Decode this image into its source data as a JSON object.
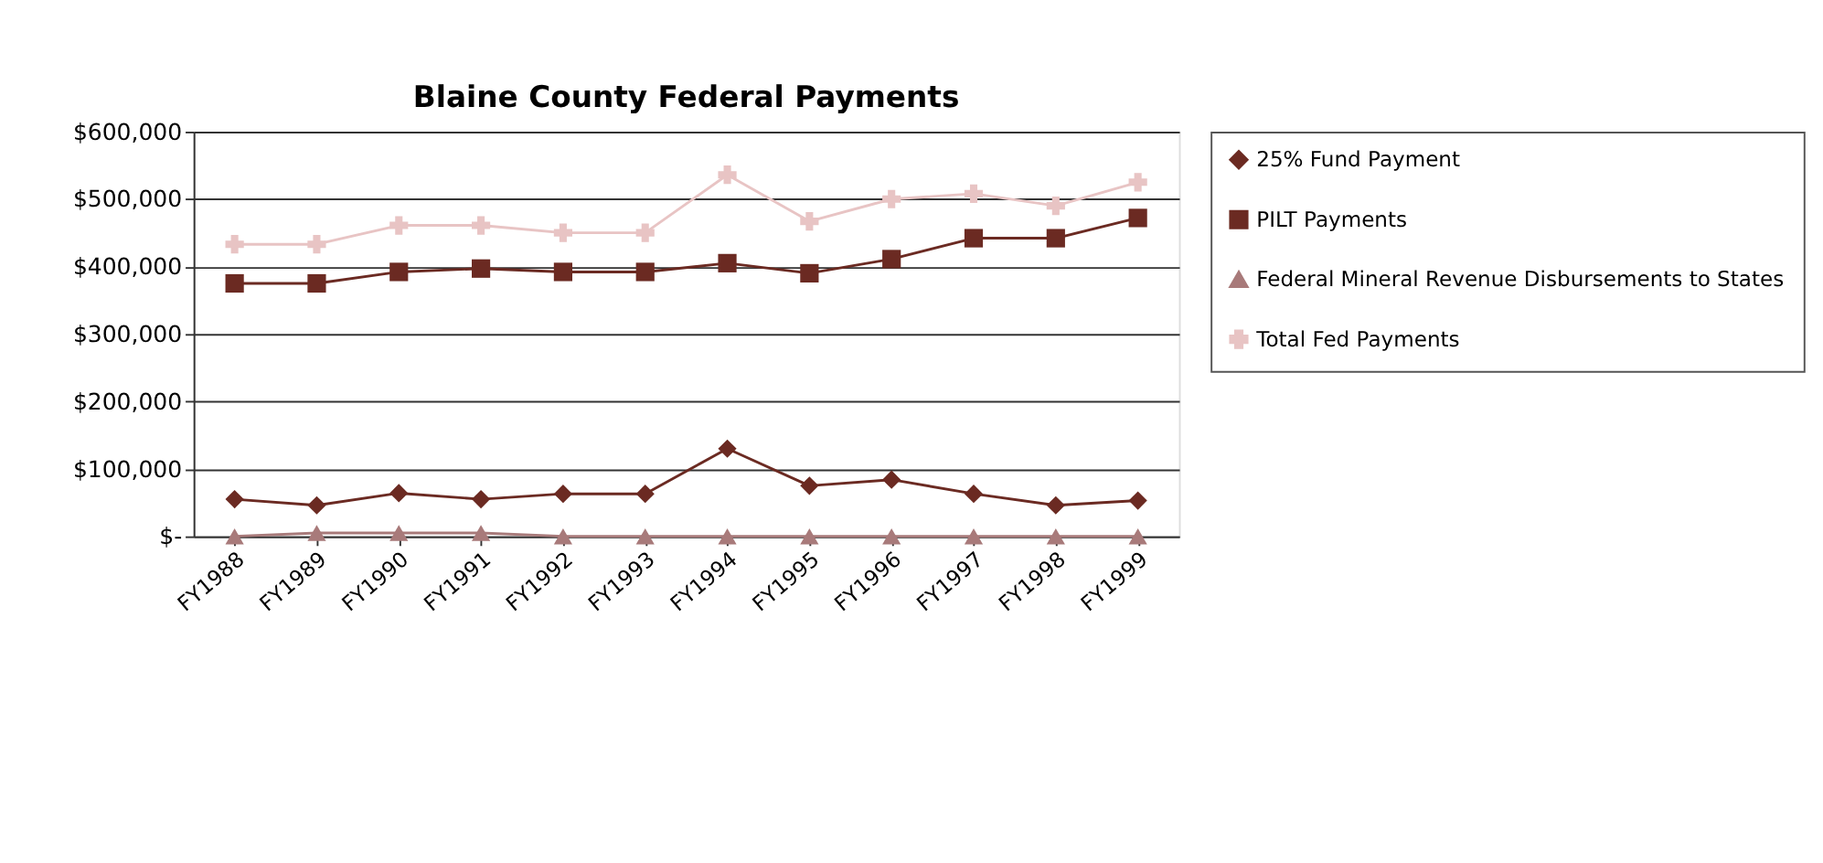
{
  "chart_data": {
    "type": "line",
    "title": "Blaine County Federal Payments",
    "categories": [
      "FY1988",
      "FY1989",
      "FY1990",
      "FY1991",
      "FY1992",
      "FY1993",
      "FY1994",
      "FY1995",
      "FY1996",
      "FY1997",
      "FY1998",
      "FY1999"
    ],
    "series": [
      {
        "name": "25% Fund Payment",
        "color": "#6b2a22",
        "marker": "diamond",
        "values": [
          55000,
          46000,
          64000,
          55000,
          63000,
          63000,
          130000,
          75000,
          84000,
          63000,
          46000,
          53000
        ]
      },
      {
        "name": "PILT Payments",
        "color": "#6b2a22",
        "marker": "square",
        "values": [
          375000,
          375000,
          392000,
          397000,
          392000,
          392000,
          405000,
          390000,
          411000,
          442000,
          442000,
          472000
        ]
      },
      {
        "name": "Federal Mineral Revenue Disbursements to States",
        "color": "#a87a7a",
        "marker": "triangle",
        "values": [
          0,
          5000,
          5000,
          5000,
          0,
          0,
          0,
          0,
          0,
          0,
          0,
          0
        ]
      },
      {
        "name": "Total Fed Payments",
        "color": "#e8c4c4",
        "marker": "cross",
        "values": [
          433000,
          433000,
          461000,
          461000,
          450000,
          450000,
          536000,
          467000,
          500000,
          508000,
          490000,
          525000
        ]
      }
    ],
    "ylim": [
      0,
      600000
    ],
    "yticks": [
      {
        "value": 0,
        "label": "$-"
      },
      {
        "value": 100000,
        "label": "$100,000"
      },
      {
        "value": 200000,
        "label": "$200,000"
      },
      {
        "value": 300000,
        "label": "$300,000"
      },
      {
        "value": 400000,
        "label": "$400,000"
      },
      {
        "value": 500000,
        "label": "$500,000"
      },
      {
        "value": 600000,
        "label": "$600,000"
      }
    ],
    "grid": "y",
    "legend": "right",
    "line_style": "solid"
  }
}
